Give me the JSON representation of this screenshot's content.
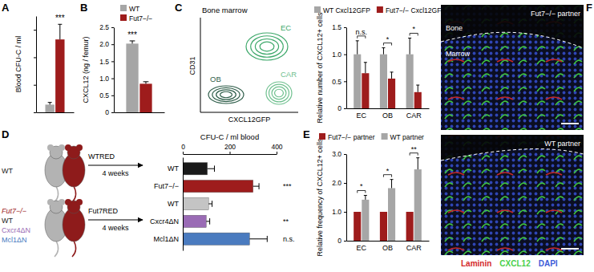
{
  "chart_data": [
    {
      "type": "bar",
      "panel": "A",
      "ylabel": "Blood CFU-C / ml",
      "categories": [
        null
      ],
      "series": [
        {
          "color": "#a6a6a6",
          "values": [
            28
          ],
          "errors": [
            8
          ]
        },
        {
          "color": "#9e1c1c",
          "values": [
            265
          ],
          "errors": [
            55
          ]
        }
      ],
      "ylim": [
        0,
        350
      ],
      "yticks": [
        0,
        100,
        200,
        300
      ],
      "tick_labels": false,
      "significance": [
        "***"
      ]
    },
    {
      "type": "bar",
      "panel": "B",
      "ylabel": "CXCL12 (ng / femur)",
      "categories": [
        null
      ],
      "series": [
        {
          "name": "WT",
          "color": "#a6a6a6",
          "values": [
            2.02
          ],
          "errors": [
            0.08
          ]
        },
        {
          "name": "Fut7−/−",
          "color": "#9e1c1c",
          "values": [
            0.84
          ],
          "errors": [
            0.06
          ]
        }
      ],
      "ylim": [
        0,
        2.5
      ],
      "yticks": [
        0,
        0.5,
        {
          "value": 1,
          "label": "1.0"
        },
        1.5,
        {
          "value": 2,
          "label": "2.0"
        },
        2.5
      ],
      "legend": "top-right",
      "significance": [
        "***"
      ]
    },
    {
      "type": "bar",
      "ylabel": "Relative number of CXCL12+ cells",
      "categories": [
        "EC",
        "OB",
        "CAR"
      ],
      "series": [
        {
          "name": "WT Cxcl12GFP",
          "color": "#a6a6a6",
          "values": [
            1,
            1,
            1
          ],
          "errors": [
            0.25,
            0.12,
            0.3
          ]
        },
        {
          "name": "Fut7−/− Cxcl12GFP",
          "color": "#9e1c1c",
          "values": [
            0.65,
            0.55,
            0.3
          ],
          "errors": [
            0.2,
            0.12,
            0.13
          ]
        }
      ],
      "ylim": [
        0,
        1.5
      ],
      "yticks": [
        0,
        0.5,
        {
          "value": 1,
          "label": "1.0"
        },
        1.5
      ],
      "legend": "top",
      "significance": [
        "n.s.",
        "*",
        "*"
      ]
    },
    {
      "type": "bar",
      "panel": "D",
      "orientation": "horizontal",
      "title": "CFU-C / ml blood",
      "categories": [
        "WT",
        "Fut7−/−",
        "WT",
        "Cxcr4ΔN",
        "Mcl1ΔN"
      ],
      "values": [
        105,
        300,
        110,
        100,
        285
      ],
      "errors": [
        30,
        25,
        15,
        15,
        75
      ],
      "colors": [
        "#1a1a1a",
        "#9e1c1c",
        "#c4c4c4",
        "#9a6bb5",
        "#4a7bbf"
      ],
      "xlim": [
        0,
        400
      ],
      "xticks": [
        0,
        200,
        400
      ],
      "significance": [
        null,
        "***",
        null,
        "**",
        "n.s."
      ]
    },
    {
      "type": "bar",
      "panel": "E",
      "ylabel": "Relative frequency of CXCL12+ cells",
      "categories": [
        "EC",
        "OB",
        "CAR"
      ],
      "series": [
        {
          "name": "Fut7−/− partner",
          "color": "#9e1c1c",
          "values": [
            1,
            1,
            1
          ]
        },
        {
          "name": "WT partner",
          "color": "#a6a6a6",
          "values": [
            1.42,
            1.82,
            2.47
          ],
          "errors": [
            0.15,
            0.3,
            0.4
          ]
        }
      ],
      "ylim": [
        0,
        3
      ],
      "yticks": [
        0,
        {
          "value": 1,
          "label": "1.0"
        },
        {
          "value": 2,
          "label": "2.0"
        },
        {
          "value": 3,
          "label": "3.0"
        }
      ],
      "legend": "top",
      "significance": [
        "*",
        "*",
        "**"
      ]
    }
  ],
  "flow_plot": {
    "panel": "C",
    "title": "Bone marrow",
    "xlabel": "CXCL12GFP",
    "ylabel": "CD31",
    "populations": [
      {
        "label": "EC",
        "color": "#3da86a"
      },
      {
        "label": "OB",
        "color": "#2f5e4a"
      },
      {
        "label": "CAR",
        "color": "#6fc08f"
      }
    ]
  },
  "schematic": {
    "rows": [
      {
        "left_labels": [
          {
            "text": "WT",
            "color": "#1a1a1a"
          }
        ],
        "pair_label": "WTRED",
        "arrow_label": "4 weeks"
      },
      {
        "left_labels": [
          {
            "text": "Fut7−/−",
            "color": "#9e1c1c"
          },
          {
            "text": "WT",
            "color": "#1a1a1a"
          },
          {
            "text": "Cxcr4ΔN",
            "color": "#9a6bb5"
          },
          {
            "text": "Mcl1ΔN",
            "color": "#4a7bbf"
          }
        ],
        "pair_label": "Fut7RED",
        "arrow_label": "4 weeks"
      }
    ]
  },
  "images": {
    "panel": "F",
    "items": [
      {
        "label": "Fut7−/− partner",
        "regions": [
          "Bone",
          "Marrow"
        ]
      },
      {
        "label": "WT partner"
      }
    ],
    "legend": [
      {
        "text": "Laminin",
        "color": "#d42a2a"
      },
      {
        "text": "CXCL12",
        "color": "#4bd04b"
      },
      {
        "text": "DAPI",
        "color": "#3d5bd8"
      }
    ]
  }
}
